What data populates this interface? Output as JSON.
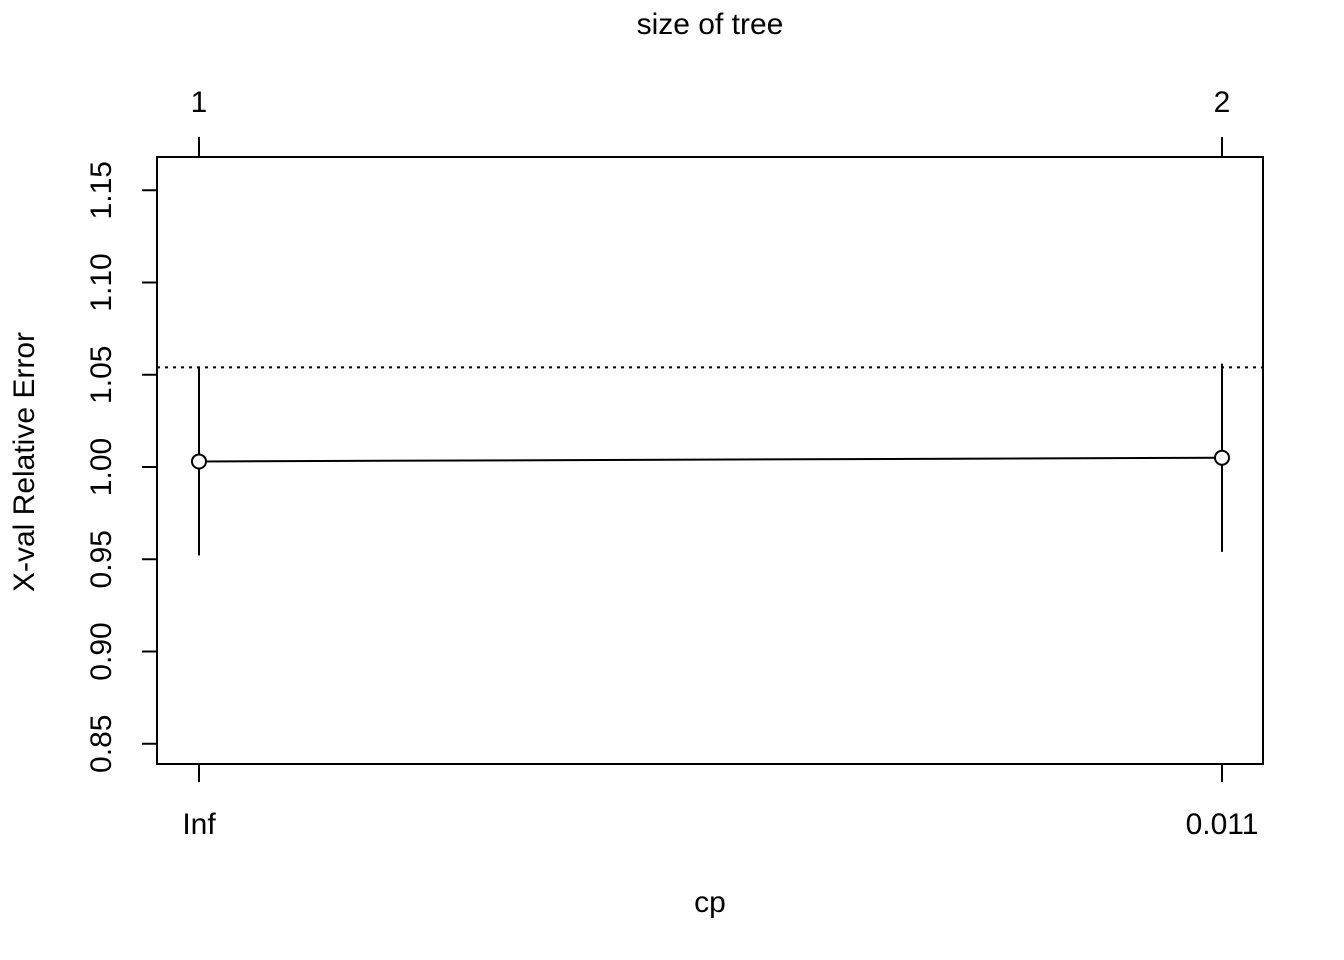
{
  "chart_data": {
    "type": "line",
    "title": "",
    "top_axis_label": "size of tree",
    "xlabel": "cp",
    "ylabel": "X-val Relative Error",
    "x_tick_labels": [
      "Inf",
      "0.011"
    ],
    "top_tick_labels": [
      "1",
      "2"
    ],
    "y_ticks": [
      "0.85",
      "0.90",
      "0.95",
      "1.00",
      "1.05",
      "1.10",
      "1.15"
    ],
    "ylim": [
      0.84,
      1.17
    ],
    "points": [
      {
        "cp": "Inf",
        "size": 1,
        "xerror": 1.003,
        "err_low": 0.952,
        "err_high": 1.054
      },
      {
        "cp": "0.011",
        "size": 2,
        "xerror": 1.005,
        "err_low": 0.954,
        "err_high": 1.056
      }
    ],
    "reference_line": 1.054,
    "grid": false,
    "legend": "none"
  }
}
